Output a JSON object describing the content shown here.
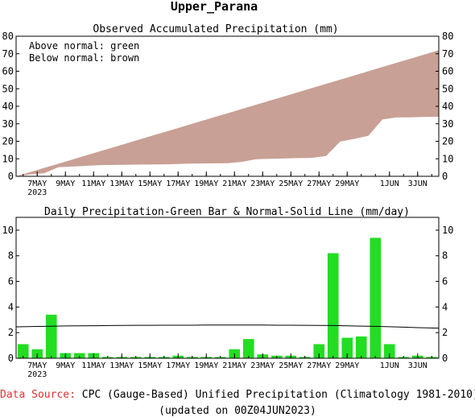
{
  "figure": {
    "title": "Upper_Parana",
    "source_label": "Data Source:",
    "source_text": "CPC (Gauge-Based) Unified Precipitation (Climatology 1981-2010)",
    "updated_text": "(updated on 00Z04JUN2023)"
  },
  "colors": {
    "above_normal": "#00a000",
    "below_normal": "#c8a095",
    "bars": "#22dd22",
    "normal_line": "#000000",
    "source_label": "#e03030"
  },
  "chart_data": [
    {
      "type": "area",
      "title": "Observed Accumulated Precipitation (mm)",
      "legend": [
        "Above normal: green",
        "Below normal: brown"
      ],
      "legend_position": "top-left",
      "ylim": [
        0,
        80
      ],
      "yticks": [
        0,
        10,
        20,
        30,
        40,
        50,
        60,
        70,
        80
      ],
      "x_tick_labels": [
        "7MAY",
        "9MAY",
        "11MAY",
        "13MAY",
        "15MAY",
        "17MAY",
        "19MAY",
        "21MAY",
        "23MAY",
        "25MAY",
        "27MAY",
        "29MAY",
        "1JUN",
        "3JUN"
      ],
      "x_year_label": "2023",
      "grid": false,
      "x": [
        "6MAY",
        "7MAY",
        "8MAY",
        "9MAY",
        "10MAY",
        "11MAY",
        "12MAY",
        "13MAY",
        "14MAY",
        "15MAY",
        "16MAY",
        "17MAY",
        "18MAY",
        "19MAY",
        "20MAY",
        "21MAY",
        "22MAY",
        "23MAY",
        "24MAY",
        "25MAY",
        "26MAY",
        "27MAY",
        "28MAY",
        "29MAY",
        "30MAY",
        "31MAY",
        "1JUN",
        "2JUN",
        "3JUN",
        "4JUN"
      ],
      "series": [
        {
          "name": "Observed",
          "values": [
            1.1,
            1.8,
            5.2,
            5.6,
            6.0,
            6.4,
            6.5,
            6.6,
            6.7,
            6.8,
            6.9,
            7.2,
            7.3,
            7.4,
            7.5,
            8.2,
            9.7,
            10.0,
            10.2,
            10.4,
            10.5,
            11.6,
            19.8,
            21.4,
            23.1,
            32.5,
            33.6,
            33.7,
            33.9,
            34.0
          ]
        },
        {
          "name": "Normal",
          "values": [
            2.4,
            4.8,
            7.2,
            9.6,
            12.0,
            14.4,
            16.8,
            19.2,
            21.6,
            24.0,
            26.4,
            28.8,
            31.2,
            33.6,
            36.0,
            38.4,
            40.8,
            43.2,
            45.6,
            48.0,
            50.4,
            52.8,
            55.2,
            57.6,
            60.0,
            62.4,
            64.8,
            67.2,
            69.6,
            72.0
          ]
        }
      ]
    },
    {
      "type": "bar",
      "title": "Daily Precipitation-Green Bar & Normal-Solid Line (mm/day)",
      "ylim": [
        0,
        11
      ],
      "yticks": [
        0,
        2,
        4,
        6,
        8,
        10
      ],
      "x_tick_labels": [
        "7MAY",
        "9MAY",
        "11MAY",
        "13MAY",
        "15MAY",
        "17MAY",
        "19MAY",
        "21MAY",
        "23MAY",
        "25MAY",
        "27MAY",
        "29MAY",
        "1JUN",
        "3JUN"
      ],
      "x_year_label": "2023",
      "grid": false,
      "x": [
        "6MAY",
        "7MAY",
        "8MAY",
        "9MAY",
        "10MAY",
        "11MAY",
        "12MAY",
        "13MAY",
        "14MAY",
        "15MAY",
        "16MAY",
        "17MAY",
        "18MAY",
        "19MAY",
        "20MAY",
        "21MAY",
        "22MAY",
        "23MAY",
        "24MAY",
        "25MAY",
        "26MAY",
        "27MAY",
        "28MAY",
        "29MAY",
        "30MAY",
        "31MAY",
        "1JUN",
        "2JUN",
        "3JUN",
        "4JUN"
      ],
      "series": [
        {
          "name": "Daily Precipitation",
          "values": [
            1.1,
            0.7,
            3.4,
            0.4,
            0.4,
            0.4,
            0.1,
            0.1,
            0.1,
            0.1,
            0.1,
            0.2,
            0.1,
            0.1,
            0.1,
            0.7,
            1.5,
            0.3,
            0.2,
            0.2,
            0.1,
            1.1,
            8.2,
            1.6,
            1.7,
            9.4,
            1.1,
            0.1,
            0.2,
            0.1
          ]
        },
        {
          "name": "Normal",
          "values": [
            2.45,
            2.48,
            2.5,
            2.52,
            2.53,
            2.54,
            2.55,
            2.56,
            2.57,
            2.57,
            2.58,
            2.58,
            2.58,
            2.59,
            2.59,
            2.59,
            2.59,
            2.59,
            2.58,
            2.58,
            2.57,
            2.56,
            2.55,
            2.53,
            2.51,
            2.49,
            2.46,
            2.43,
            2.39,
            2.35
          ]
        }
      ]
    }
  ]
}
